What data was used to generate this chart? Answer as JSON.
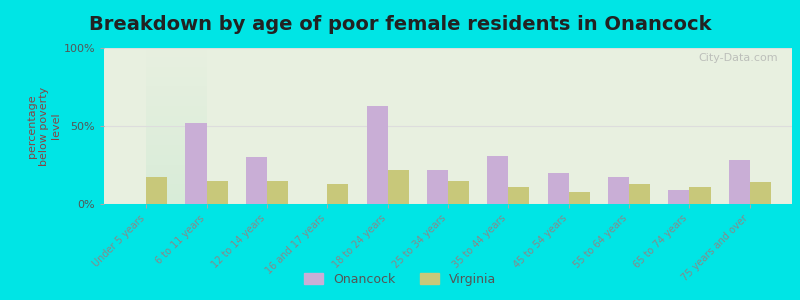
{
  "title": "Breakdown by age of poor female residents in Onancock",
  "ylabel": "percentage\nbelow poverty\nlevel",
  "categories": [
    "Under 5 years",
    "6 to 11 years",
    "12 to 14 years",
    "16 and 17 years",
    "18 to 24 years",
    "25 to 34 years",
    "35 to 44 years",
    "45 to 54 years",
    "55 to 64 years",
    "65 to 74 years",
    "75 years and over"
  ],
  "onancock": [
    0,
    52,
    30,
    0,
    63,
    22,
    31,
    20,
    17,
    9,
    28
  ],
  "virginia": [
    17,
    15,
    15,
    13,
    22,
    15,
    11,
    8,
    13,
    11,
    14
  ],
  "onancock_color": "#c9aed6",
  "virginia_color": "#c8c87a",
  "ylim": [
    0,
    100
  ],
  "yticks": [
    0,
    50,
    100
  ],
  "ytick_labels": [
    "0%",
    "50%",
    "100%"
  ],
  "background_outer": "#00e5e5",
  "background_plot_top": "#e8f0e0",
  "background_plot_bottom": "#d8ecd8",
  "title_fontsize": 14,
  "axis_label_fontsize": 8,
  "tick_fontsize": 8,
  "legend_label_onancock": "Onancock",
  "legend_label_virginia": "Virginia",
  "watermark": "City-Data.com"
}
